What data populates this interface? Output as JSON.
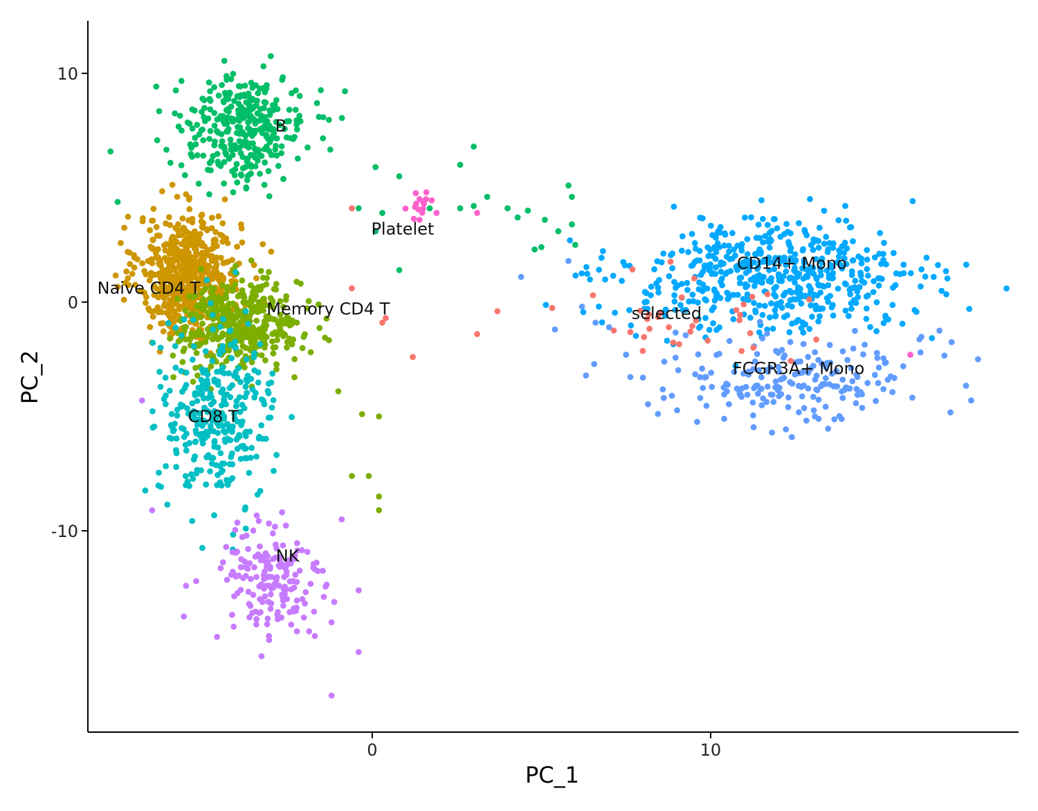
{
  "chart_data": {
    "type": "scatter",
    "title": "",
    "xlabel": "PC_1",
    "ylabel": "PC_2",
    "xlim": [
      -8.4,
      19.1
    ],
    "ylim": [
      -18.8,
      12.3
    ],
    "x_ticks": [
      0,
      10
    ],
    "y_ticks": [
      10,
      0,
      -10
    ],
    "x_tick_labels": [
      "0",
      "10"
    ],
    "y_tick_labels": [
      "10",
      "0",
      "-10"
    ],
    "grid": false,
    "legend": "none",
    "marker_radius_data": 0.09,
    "clusters": [
      {
        "label": "Naive CD4 T",
        "color": "#CD9600",
        "label_x": -6.6,
        "label_y": 0.6,
        "center": [
          -5.4,
          1.2
        ],
        "spread": [
          0.75,
          1.3
        ],
        "n": 650
      },
      {
        "label": "Memory CD4 T",
        "color": "#7CAE00",
        "label_x": -1.3,
        "label_y": -0.3,
        "center": [
          -3.9,
          -1.0
        ],
        "spread": [
          0.9,
          1.0
        ],
        "n": 420
      },
      {
        "label": "CD8 T",
        "color": "#00BFC4",
        "label_x": -4.7,
        "label_y": -5.0,
        "center": [
          -4.6,
          -5.0
        ],
        "spread": [
          0.85,
          1.9
        ],
        "n": 320
      },
      {
        "label": "B",
        "color": "#00BE67",
        "label_x": -2.7,
        "label_y": 7.7,
        "center": [
          -3.8,
          7.6
        ],
        "spread": [
          0.95,
          1.15
        ],
        "n": 330
      },
      {
        "label": "NK",
        "color": "#C77CFF",
        "label_x": -2.5,
        "label_y": -11.1,
        "center": [
          -3.0,
          -12.3
        ],
        "spread": [
          0.8,
          1.45
        ],
        "n": 170
      },
      {
        "label": "CD14+ Mono",
        "color": "#00A9FF",
        "label_x": 12.4,
        "label_y": 1.7,
        "center": [
          11.8,
          1.1
        ],
        "spread": [
          2.2,
          1.2
        ],
        "n": 540
      },
      {
        "label": "FCGR3A+ Mono",
        "color": "#619CFF",
        "label_x": 12.6,
        "label_y": -2.9,
        "center": [
          12.6,
          -3.3
        ],
        "spread": [
          1.9,
          1.0
        ],
        "n": 200
      },
      {
        "label": "selected",
        "color": "#F8766D",
        "label_x": 8.7,
        "label_y": -0.5,
        "center": [
          8.8,
          -0.8
        ],
        "spread": [
          1.7,
          1.2
        ],
        "n": 35
      },
      {
        "label": "Platelet",
        "color": "#FF61CC",
        "label_x": 0.9,
        "label_y": 3.2,
        "center": [
          1.4,
          4.2
        ],
        "spread": [
          0.2,
          0.4
        ],
        "n": 10
      }
    ],
    "stray_points": [
      {
        "x": 3.0,
        "y": 6.8,
        "color": "#00BE67"
      },
      {
        "x": 2.6,
        "y": 6.0,
        "color": "#00BE67"
      },
      {
        "x": 3.4,
        "y": 4.6,
        "color": "#00BE67"
      },
      {
        "x": 4.0,
        "y": 4.1,
        "color": "#00BE67"
      },
      {
        "x": 2.6,
        "y": 4.1,
        "color": "#00BE67"
      },
      {
        "x": 3.0,
        "y": 4.2,
        "color": "#00BE67"
      },
      {
        "x": 4.3,
        "y": 3.7,
        "color": "#00BE67"
      },
      {
        "x": 4.6,
        "y": 4.0,
        "color": "#00BE67"
      },
      {
        "x": 5.1,
        "y": 3.6,
        "color": "#00BE67"
      },
      {
        "x": 5.5,
        "y": 3.1,
        "color": "#00BE67"
      },
      {
        "x": 5.0,
        "y": 2.4,
        "color": "#00BE67"
      },
      {
        "x": 4.8,
        "y": 2.3,
        "color": "#00BE67"
      },
      {
        "x": 5.8,
        "y": 5.1,
        "color": "#00BE67"
      },
      {
        "x": 5.9,
        "y": 4.6,
        "color": "#00BE67"
      },
      {
        "x": 5.9,
        "y": 3.4,
        "color": "#00BE67"
      },
      {
        "x": 6.0,
        "y": 2.5,
        "color": "#00BE67"
      },
      {
        "x": 0.8,
        "y": 5.5,
        "color": "#00BE67"
      },
      {
        "x": 1.7,
        "y": 4.1,
        "color": "#00BE67"
      },
      {
        "x": 0.8,
        "y": 1.4,
        "color": "#00BE67"
      },
      {
        "x": 0.1,
        "y": 5.9,
        "color": "#00BE67"
      },
      {
        "x": 0.3,
        "y": 3.9,
        "color": "#00BE67"
      },
      {
        "x": 0.1,
        "y": 3.1,
        "color": "#00BE67"
      },
      {
        "x": -0.4,
        "y": 4.1,
        "color": "#00BE67"
      },
      {
        "x": 4.4,
        "y": 1.1,
        "color": "#619CFF"
      },
      {
        "x": 5.4,
        "y": -1.2,
        "color": "#619CFF"
      },
      {
        "x": 6.2,
        "y": -0.2,
        "color": "#619CFF"
      },
      {
        "x": 6.6,
        "y": -0.9,
        "color": "#619CFF"
      },
      {
        "x": 7.0,
        "y": -1.1,
        "color": "#619CFF"
      },
      {
        "x": 5.8,
        "y": 1.8,
        "color": "#619CFF"
      },
      {
        "x": 7.5,
        "y": -2.3,
        "color": "#619CFF"
      },
      {
        "x": 8.0,
        "y": -3.3,
        "color": "#619CFF"
      },
      {
        "x": 10.4,
        "y": -5.1,
        "color": "#619CFF"
      },
      {
        "x": 12.4,
        "y": -5.9,
        "color": "#619CFF"
      },
      {
        "x": 17.7,
        "y": -4.3,
        "color": "#619CFF"
      },
      {
        "x": 17.9,
        "y": -2.5,
        "color": "#619CFF"
      },
      {
        "x": 16.2,
        "y": -2.2,
        "color": "#619CFF"
      },
      {
        "x": 0.3,
        "y": -0.9,
        "color": "#F8766D"
      },
      {
        "x": 0.4,
        "y": -0.7,
        "color": "#F8766D"
      },
      {
        "x": 1.2,
        "y": -2.4,
        "color": "#F8766D"
      },
      {
        "x": 3.1,
        "y": -1.4,
        "color": "#F8766D"
      },
      {
        "x": 3.7,
        "y": -0.4,
        "color": "#F8766D"
      },
      {
        "x": -0.6,
        "y": 0.6,
        "color": "#F8766D"
      },
      {
        "x": -0.6,
        "y": 4.1,
        "color": "#F8766D"
      },
      {
        "x": 1.4,
        "y": 4.5,
        "color": "#FF61CC"
      },
      {
        "x": 1.6,
        "y": 4.8,
        "color": "#FF61CC"
      },
      {
        "x": 1.3,
        "y": 4.3,
        "color": "#FF61CC"
      },
      {
        "x": 1.5,
        "y": 4.4,
        "color": "#FF61CC"
      },
      {
        "x": 1.4,
        "y": 3.6,
        "color": "#FF61CC"
      },
      {
        "x": 3.1,
        "y": 3.9,
        "color": "#FF61CC"
      },
      {
        "x": 1.9,
        "y": 3.9,
        "color": "#FF61CC"
      },
      {
        "x": 15.9,
        "y": -2.3,
        "color": "#FF61CC"
      },
      {
        "x": 0.2,
        "y": -5.0,
        "color": "#7CAE00"
      },
      {
        "x": -0.3,
        "y": -4.9,
        "color": "#7CAE00"
      },
      {
        "x": -0.1,
        "y": -7.6,
        "color": "#7CAE00"
      },
      {
        "x": 0.2,
        "y": -8.5,
        "color": "#7CAE00"
      },
      {
        "x": 0.2,
        "y": -9.1,
        "color": "#7CAE00"
      },
      {
        "x": -0.6,
        "y": -7.6,
        "color": "#7CAE00"
      },
      {
        "x": -1.0,
        "y": -3.9,
        "color": "#7CAE00"
      },
      {
        "x": -0.4,
        "y": -12.6,
        "color": "#C77CFF"
      },
      {
        "x": -1.2,
        "y": -14.0,
        "color": "#C77CFF"
      },
      {
        "x": -1.2,
        "y": -17.2,
        "color": "#C77CFF"
      },
      {
        "x": -0.4,
        "y": -15.3,
        "color": "#C77CFF"
      },
      {
        "x": -0.9,
        "y": -9.5,
        "color": "#C77CFF"
      },
      {
        "x": -6.5,
        "y": -9.1,
        "color": "#C77CFF"
      },
      {
        "x": -5.5,
        "y": -12.4,
        "color": "#C77CFF"
      },
      {
        "x": -5.2,
        "y": -12.2,
        "color": "#C77CFF"
      },
      {
        "x": -6.8,
        "y": -4.3,
        "color": "#C77CFF"
      }
    ]
  }
}
